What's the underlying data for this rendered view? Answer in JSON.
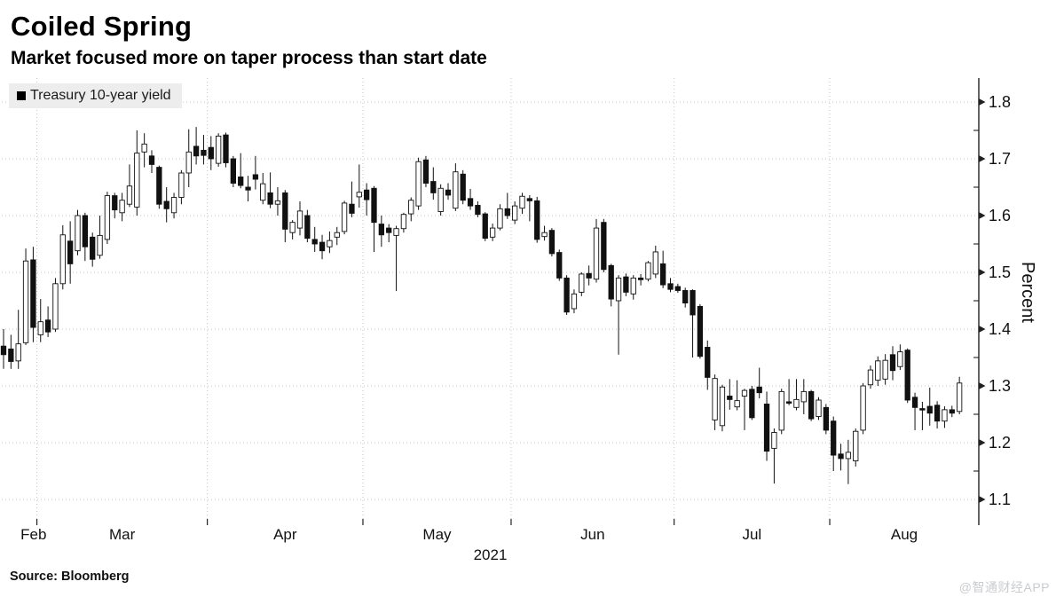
{
  "header": {
    "title": "Coiled Spring",
    "subtitle": "Market focused more on taper process than start date"
  },
  "legend": {
    "marker": "black-square-icon",
    "label": "Treasury 10-year yield"
  },
  "footer": {
    "source": "Source: Bloomberg",
    "watermark": "@智通财经APP"
  },
  "chart_data": {
    "type": "candlestick",
    "title": "Coiled Spring",
    "series_name": "Treasury 10-year yield",
    "ylabel": "Percent",
    "year_label": "2021",
    "ylim": [
      1.066,
      1.842
    ],
    "yticks": [
      1.1,
      1.2,
      1.3,
      1.4,
      1.5,
      1.6,
      1.7,
      1.8
    ],
    "minor_tick_step": 0.05,
    "grid": "dotted",
    "legend_position": "top-left",
    "axis_side": "right",
    "colors": {
      "up": "#ffffff",
      "down": "#111111",
      "outline": "#111111",
      "grid": "#c3c3c3",
      "axis": "#222222"
    },
    "months": [
      {
        "label": "Feb",
        "days": 5
      },
      {
        "label": "Mar",
        "days": 23
      },
      {
        "label": "Apr",
        "days": 21
      },
      {
        "label": "May",
        "days": 20
      },
      {
        "label": "Jun",
        "days": 22
      },
      {
        "label": "Jul",
        "days": 21
      },
      {
        "label": "Aug",
        "days": 18
      }
    ],
    "candles_format": [
      "open",
      "high",
      "low",
      "close"
    ],
    "candles": [
      [
        1.37,
        1.4,
        1.33,
        1.355
      ],
      [
        1.365,
        1.39,
        1.33,
        1.343
      ],
      [
        1.344,
        1.434,
        1.33,
        1.374
      ],
      [
        1.376,
        1.542,
        1.372,
        1.52
      ],
      [
        1.522,
        1.545,
        1.377,
        1.403
      ],
      [
        1.39,
        1.453,
        1.377,
        1.413
      ],
      [
        1.416,
        1.44,
        1.386,
        1.395
      ],
      [
        1.4,
        1.49,
        1.395,
        1.48
      ],
      [
        1.48,
        1.583,
        1.47,
        1.566
      ],
      [
        1.555,
        1.59,
        1.48,
        1.515
      ],
      [
        1.538,
        1.61,
        1.53,
        1.6
      ],
      [
        1.6,
        1.605,
        1.52,
        1.545
      ],
      [
        1.562,
        1.57,
        1.51,
        1.523
      ],
      [
        1.53,
        1.6,
        1.524,
        1.565
      ],
      [
        1.558,
        1.642,
        1.55,
        1.635
      ],
      [
        1.635,
        1.64,
        1.595,
        1.61
      ],
      [
        1.605,
        1.64,
        1.59,
        1.627
      ],
      [
        1.62,
        1.69,
        1.615,
        1.652
      ],
      [
        1.615,
        1.75,
        1.6,
        1.71
      ],
      [
        1.712,
        1.745,
        1.685,
        1.726
      ],
      [
        1.705,
        1.715,
        1.675,
        1.69
      ],
      [
        1.685,
        1.688,
        1.612,
        1.62
      ],
      [
        1.625,
        1.65,
        1.588,
        1.612
      ],
      [
        1.605,
        1.64,
        1.595,
        1.632
      ],
      [
        1.632,
        1.68,
        1.62,
        1.675
      ],
      [
        1.675,
        1.752,
        1.65,
        1.712
      ],
      [
        1.722,
        1.756,
        1.69,
        1.705
      ],
      [
        1.715,
        1.742,
        1.69,
        1.706
      ],
      [
        1.72,
        1.74,
        1.68,
        1.7
      ],
      [
        1.692,
        1.745,
        1.686,
        1.74
      ],
      [
        1.742,
        1.746,
        1.685,
        1.693
      ],
      [
        1.7,
        1.705,
        1.65,
        1.657
      ],
      [
        1.668,
        1.71,
        1.648,
        1.653
      ],
      [
        1.65,
        1.67,
        1.625,
        1.645
      ],
      [
        1.672,
        1.705,
        1.646,
        1.664
      ],
      [
        1.627,
        1.675,
        1.62,
        1.656
      ],
      [
        1.64,
        1.676,
        1.613,
        1.62
      ],
      [
        1.62,
        1.65,
        1.6,
        1.626
      ],
      [
        1.64,
        1.645,
        1.553,
        1.576
      ],
      [
        1.57,
        1.592,
        1.558,
        1.588
      ],
      [
        1.578,
        1.625,
        1.565,
        1.608
      ],
      [
        1.6,
        1.61,
        1.553,
        1.56
      ],
      [
        1.558,
        1.58,
        1.536,
        1.55
      ],
      [
        1.553,
        1.566,
        1.523,
        1.538
      ],
      [
        1.545,
        1.572,
        1.534,
        1.556
      ],
      [
        1.562,
        1.58,
        1.548,
        1.57
      ],
      [
        1.572,
        1.626,
        1.567,
        1.622
      ],
      [
        1.62,
        1.66,
        1.597,
        1.604
      ],
      [
        1.633,
        1.69,
        1.614,
        1.641
      ],
      [
        1.645,
        1.657,
        1.6,
        1.628
      ],
      [
        1.648,
        1.652,
        1.536,
        1.588
      ],
      [
        1.585,
        1.6,
        1.545,
        1.566
      ],
      [
        1.578,
        1.585,
        1.553,
        1.57
      ],
      [
        1.565,
        1.582,
        1.467,
        1.577
      ],
      [
        1.577,
        1.605,
        1.57,
        1.602
      ],
      [
        1.603,
        1.632,
        1.59,
        1.627
      ],
      [
        1.617,
        1.702,
        1.61,
        1.695
      ],
      [
        1.698,
        1.705,
        1.65,
        1.657
      ],
      [
        1.66,
        1.685,
        1.628,
        1.64
      ],
      [
        1.607,
        1.655,
        1.6,
        1.648
      ],
      [
        1.645,
        1.657,
        1.628,
        1.636
      ],
      [
        1.613,
        1.692,
        1.608,
        1.677
      ],
      [
        1.673,
        1.68,
        1.62,
        1.627
      ],
      [
        1.63,
        1.647,
        1.61,
        1.617
      ],
      [
        1.618,
        1.625,
        1.597,
        1.602
      ],
      [
        1.603,
        1.606,
        1.555,
        1.56
      ],
      [
        1.562,
        1.586,
        1.555,
        1.578
      ],
      [
        1.578,
        1.62,
        1.574,
        1.612
      ],
      [
        1.612,
        1.64,
        1.594,
        1.6
      ],
      [
        1.592,
        1.625,
        1.585,
        1.617
      ],
      [
        1.613,
        1.64,
        1.603,
        1.634
      ],
      [
        1.63,
        1.636,
        1.59,
        1.626
      ],
      [
        1.626,
        1.633,
        1.552,
        1.558
      ],
      [
        1.563,
        1.582,
        1.556,
        1.57
      ],
      [
        1.574,
        1.578,
        1.528,
        1.533
      ],
      [
        1.535,
        1.54,
        1.485,
        1.49
      ],
      [
        1.49,
        1.495,
        1.425,
        1.43
      ],
      [
        1.436,
        1.47,
        1.428,
        1.462
      ],
      [
        1.465,
        1.5,
        1.458,
        1.497
      ],
      [
        1.498,
        1.512,
        1.477,
        1.49
      ],
      [
        1.488,
        1.594,
        1.482,
        1.578
      ],
      [
        1.588,
        1.594,
        1.5,
        1.505
      ],
      [
        1.512,
        1.515,
        1.44,
        1.453
      ],
      [
        1.45,
        1.495,
        1.355,
        1.49
      ],
      [
        1.492,
        1.498,
        1.458,
        1.465
      ],
      [
        1.462,
        1.495,
        1.452,
        1.49
      ],
      [
        1.49,
        1.497,
        1.477,
        1.487
      ],
      [
        1.488,
        1.52,
        1.484,
        1.517
      ],
      [
        1.497,
        1.547,
        1.49,
        1.536
      ],
      [
        1.515,
        1.538,
        1.472,
        1.478
      ],
      [
        1.48,
        1.49,
        1.465,
        1.47
      ],
      [
        1.475,
        1.48,
        1.464,
        1.468
      ],
      [
        1.468,
        1.473,
        1.438,
        1.446
      ],
      [
        1.468,
        1.47,
        1.35,
        1.425
      ],
      [
        1.44,
        1.444,
        1.348,
        1.352
      ],
      [
        1.368,
        1.38,
        1.293,
        1.315
      ],
      [
        1.24,
        1.32,
        1.222,
        1.313
      ],
      [
        1.23,
        1.302,
        1.22,
        1.298
      ],
      [
        1.282,
        1.312,
        1.258,
        1.276
      ],
      [
        1.263,
        1.31,
        1.257,
        1.274
      ],
      [
        1.282,
        1.295,
        1.222,
        1.292
      ],
      [
        1.294,
        1.3,
        1.24,
        1.244
      ],
      [
        1.298,
        1.332,
        1.278,
        1.288
      ],
      [
        1.268,
        1.29,
        1.168,
        1.185
      ],
      [
        1.19,
        1.225,
        1.128,
        1.218
      ],
      [
        1.222,
        1.295,
        1.215,
        1.29
      ],
      [
        1.272,
        1.312,
        1.266,
        1.27
      ],
      [
        1.262,
        1.312,
        1.257,
        1.276
      ],
      [
        1.272,
        1.312,
        1.25,
        1.29
      ],
      [
        1.29,
        1.293,
        1.238,
        1.242
      ],
      [
        1.246,
        1.28,
        1.24,
        1.275
      ],
      [
        1.262,
        1.268,
        1.215,
        1.222
      ],
      [
        1.238,
        1.246,
        1.15,
        1.178
      ],
      [
        1.18,
        1.198,
        1.151,
        1.172
      ],
      [
        1.172,
        1.205,
        1.127,
        1.183
      ],
      [
        1.168,
        1.225,
        1.158,
        1.22
      ],
      [
        1.222,
        1.305,
        1.215,
        1.3
      ],
      [
        1.302,
        1.336,
        1.295,
        1.328
      ],
      [
        1.31,
        1.352,
        1.3,
        1.344
      ],
      [
        1.312,
        1.356,
        1.302,
        1.345
      ],
      [
        1.355,
        1.37,
        1.31,
        1.327
      ],
      [
        1.334,
        1.373,
        1.328,
        1.36
      ],
      [
        1.363,
        1.366,
        1.27,
        1.275
      ],
      [
        1.28,
        1.288,
        1.222,
        1.262
      ],
      [
        1.26,
        1.272,
        1.222,
        1.258
      ],
      [
        1.264,
        1.297,
        1.23,
        1.252
      ],
      [
        1.266,
        1.273,
        1.225,
        1.238
      ],
      [
        1.238,
        1.264,
        1.226,
        1.258
      ],
      [
        1.258,
        1.265,
        1.245,
        1.252
      ],
      [
        1.255,
        1.316,
        1.25,
        1.305
      ]
    ]
  }
}
